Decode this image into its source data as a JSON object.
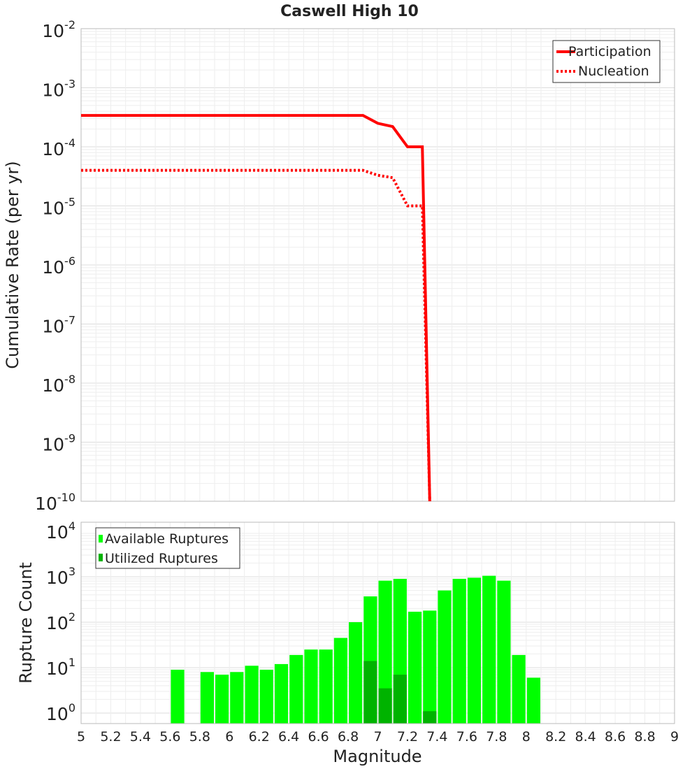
{
  "chart_data": [
    {
      "type": "line",
      "title": "Caswell High 10",
      "xlabel": "",
      "ylabel": "Cumulative Rate (per yr)",
      "xlim": [
        5,
        9
      ],
      "ylim_exponents": [
        -10,
        -2
      ],
      "y_scale": "log",
      "y_tick_base": "10",
      "y_tick_exponents": [
        "-10",
        "-9",
        "-8",
        "-7",
        "-6",
        "-5",
        "-4",
        "-3",
        "-2"
      ],
      "grid": true,
      "legend": "top-right",
      "series": [
        {
          "name": "Participation",
          "color": "#ff0000",
          "style": "solid",
          "points": [
            [
              5.0,
              0.00034
            ],
            [
              6.9,
              0.00034
            ],
            [
              7.0,
              0.00025
            ],
            [
              7.1,
              0.00022
            ],
            [
              7.2,
              0.0001
            ],
            [
              7.3,
              0.0001
            ],
            [
              7.35,
              1e-10
            ]
          ]
        },
        {
          "name": "Nucleation",
          "color": "#ff0000",
          "style": "dotted",
          "points": [
            [
              5.0,
              4e-05
            ],
            [
              6.9,
              4e-05
            ],
            [
              7.0,
              3.3e-05
            ],
            [
              7.1,
              3e-05
            ],
            [
              7.2,
              1e-05
            ],
            [
              7.3,
              1e-05
            ],
            [
              7.35,
              1e-10
            ]
          ]
        }
      ]
    },
    {
      "type": "bar",
      "xlabel": "Magnitude",
      "ylabel": "Rupture Count",
      "xlim": [
        5,
        9
      ],
      "y_scale": "log",
      "ylim_exponents": [
        0,
        4
      ],
      "y_tick_base": "10",
      "y_tick_exponents": [
        "0",
        "1",
        "2",
        "3",
        "4"
      ],
      "x_ticks": [
        "5",
        "5.2",
        "5.4",
        "5.6",
        "5.8",
        "6",
        "6.2",
        "6.4",
        "6.6",
        "6.8",
        "7",
        "7.2",
        "7.4",
        "7.6",
        "7.8",
        "8",
        "8.2",
        "8.4",
        "8.6",
        "8.8",
        "9"
      ],
      "grid": true,
      "legend": "top-left",
      "series": [
        {
          "name": "Available Ruptures",
          "color": "#00ff00",
          "x": [
            5.65,
            5.85,
            5.95,
            6.05,
            6.15,
            6.25,
            6.35,
            6.45,
            6.55,
            6.65,
            6.75,
            6.85,
            6.95,
            7.05,
            7.15,
            7.25,
            7.35,
            7.45,
            7.55,
            7.65,
            7.75,
            7.85,
            7.95,
            8.05
          ],
          "values": [
            9,
            8,
            7,
            8,
            11,
            9,
            12,
            19,
            25,
            25,
            45,
            100,
            370,
            820,
            900,
            170,
            180,
            500,
            900,
            950,
            1050,
            820,
            19,
            6
          ]
        },
        {
          "name": "Utilized Ruptures",
          "color": "#00b300",
          "x": [
            6.95,
            7.05,
            7.15,
            7.35
          ],
          "values": [
            14,
            3.5,
            7,
            1.1
          ]
        }
      ]
    }
  ]
}
